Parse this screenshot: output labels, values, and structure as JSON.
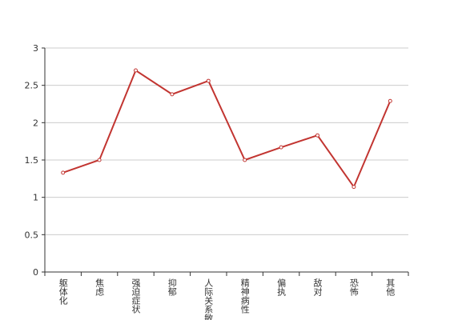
{
  "chart_data": {
    "type": "line",
    "categories": [
      "躯体化",
      "焦虑",
      "强迫症状",
      "抑郁",
      "人际关系敏感",
      "精神病性",
      "偏执",
      "敌对",
      "恐怖",
      "其他"
    ],
    "values": [
      1.33,
      1.5,
      2.7,
      2.38,
      2.56,
      1.5,
      1.67,
      1.83,
      1.14,
      2.29
    ],
    "color": "#c23531",
    "ylim": [
      0,
      3
    ],
    "yticks": [
      0,
      0.5,
      1,
      1.5,
      2,
      2.5,
      3
    ],
    "grid": true
  }
}
